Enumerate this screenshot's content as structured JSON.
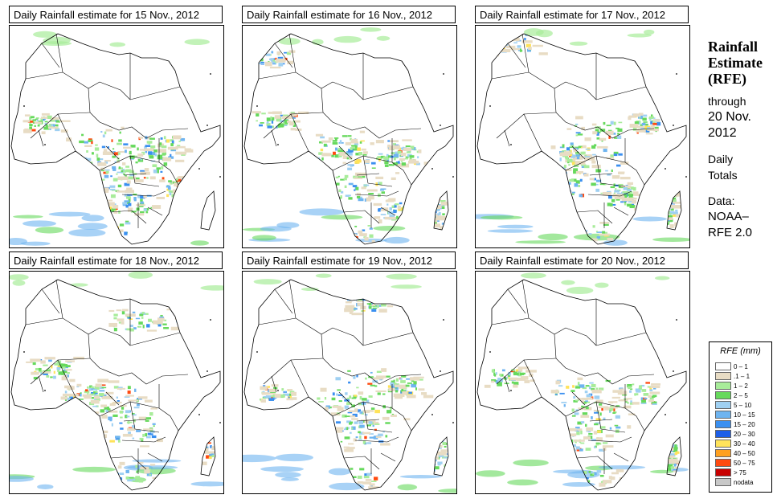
{
  "panels": [
    {
      "title": "Daily Rainfall estimate for  15 Nov., 2012"
    },
    {
      "title": "Daily Rainfall estimate for  16 Nov., 2012"
    },
    {
      "title": "Daily Rainfall estimate for  17 Nov., 2012"
    },
    {
      "title": "Daily Rainfall estimate for  18 Nov., 2012"
    },
    {
      "title": "Daily Rainfall estimate for  19 Nov., 2012"
    },
    {
      "title": "Daily Rainfall estimate for  20 Nov., 2012"
    }
  ],
  "info": {
    "title_line1": "Rainfall",
    "title_line2": "Estimate",
    "title_line3": "(RFE)",
    "through_label": "through",
    "through_date1": "20 Nov.",
    "through_date2": "2012",
    "daily1": "Daily",
    "daily2": "Totals",
    "data1": "Data:",
    "data2": "NOAA–",
    "data3": "RFE 2.0"
  },
  "legend": {
    "title": "RFE (mm)",
    "items": [
      {
        "label": "0 – 1",
        "color": "#ffffff"
      },
      {
        "label": ".1 – 1",
        "color": "#e8dcc4"
      },
      {
        "label": "1 – 2",
        "color": "#a8ec9a"
      },
      {
        "label": "2 – 5",
        "color": "#66d95c"
      },
      {
        "label": "5 – 10",
        "color": "#9fd0f2"
      },
      {
        "label": "10 – 15",
        "color": "#6eb4f0"
      },
      {
        "label": "15 – 20",
        "color": "#3a8ff0"
      },
      {
        "label": "20 – 30",
        "color": "#1c5ee8"
      },
      {
        "label": "30 – 40",
        "color": "#ffe35a"
      },
      {
        "label": "40 – 50",
        "color": "#ffa020"
      },
      {
        "label": "50 – 75",
        "color": "#ff4a10"
      },
      {
        "label": "> 75",
        "color": "#c80000"
      },
      {
        "label": "nodata",
        "color": "#c8c8c8"
      }
    ]
  }
}
